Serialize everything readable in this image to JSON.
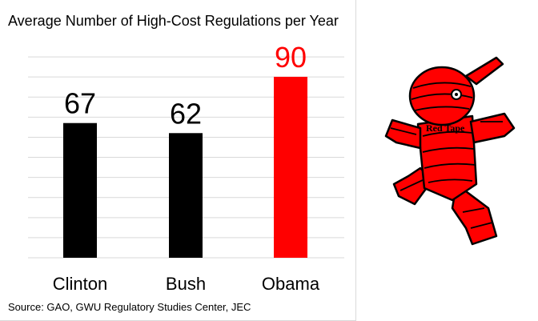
{
  "chart_data": {
    "type": "bar",
    "title": "Average Number of High-Cost Regulations per Year",
    "categories": [
      "Clinton",
      "Bush",
      "Obama"
    ],
    "values": [
      67,
      62,
      90
    ],
    "colors": [
      "#000000",
      "#000000",
      "#ff0000"
    ],
    "label_colors": [
      "#000000",
      "#000000",
      "#ff0000"
    ],
    "ylim": [
      0,
      100
    ],
    "grid": true,
    "source": "Source: GAO, GWU Regulatory Studies Center, JEC"
  },
  "mascot": {
    "label": "Red Tape",
    "color": "#ff0000"
  }
}
